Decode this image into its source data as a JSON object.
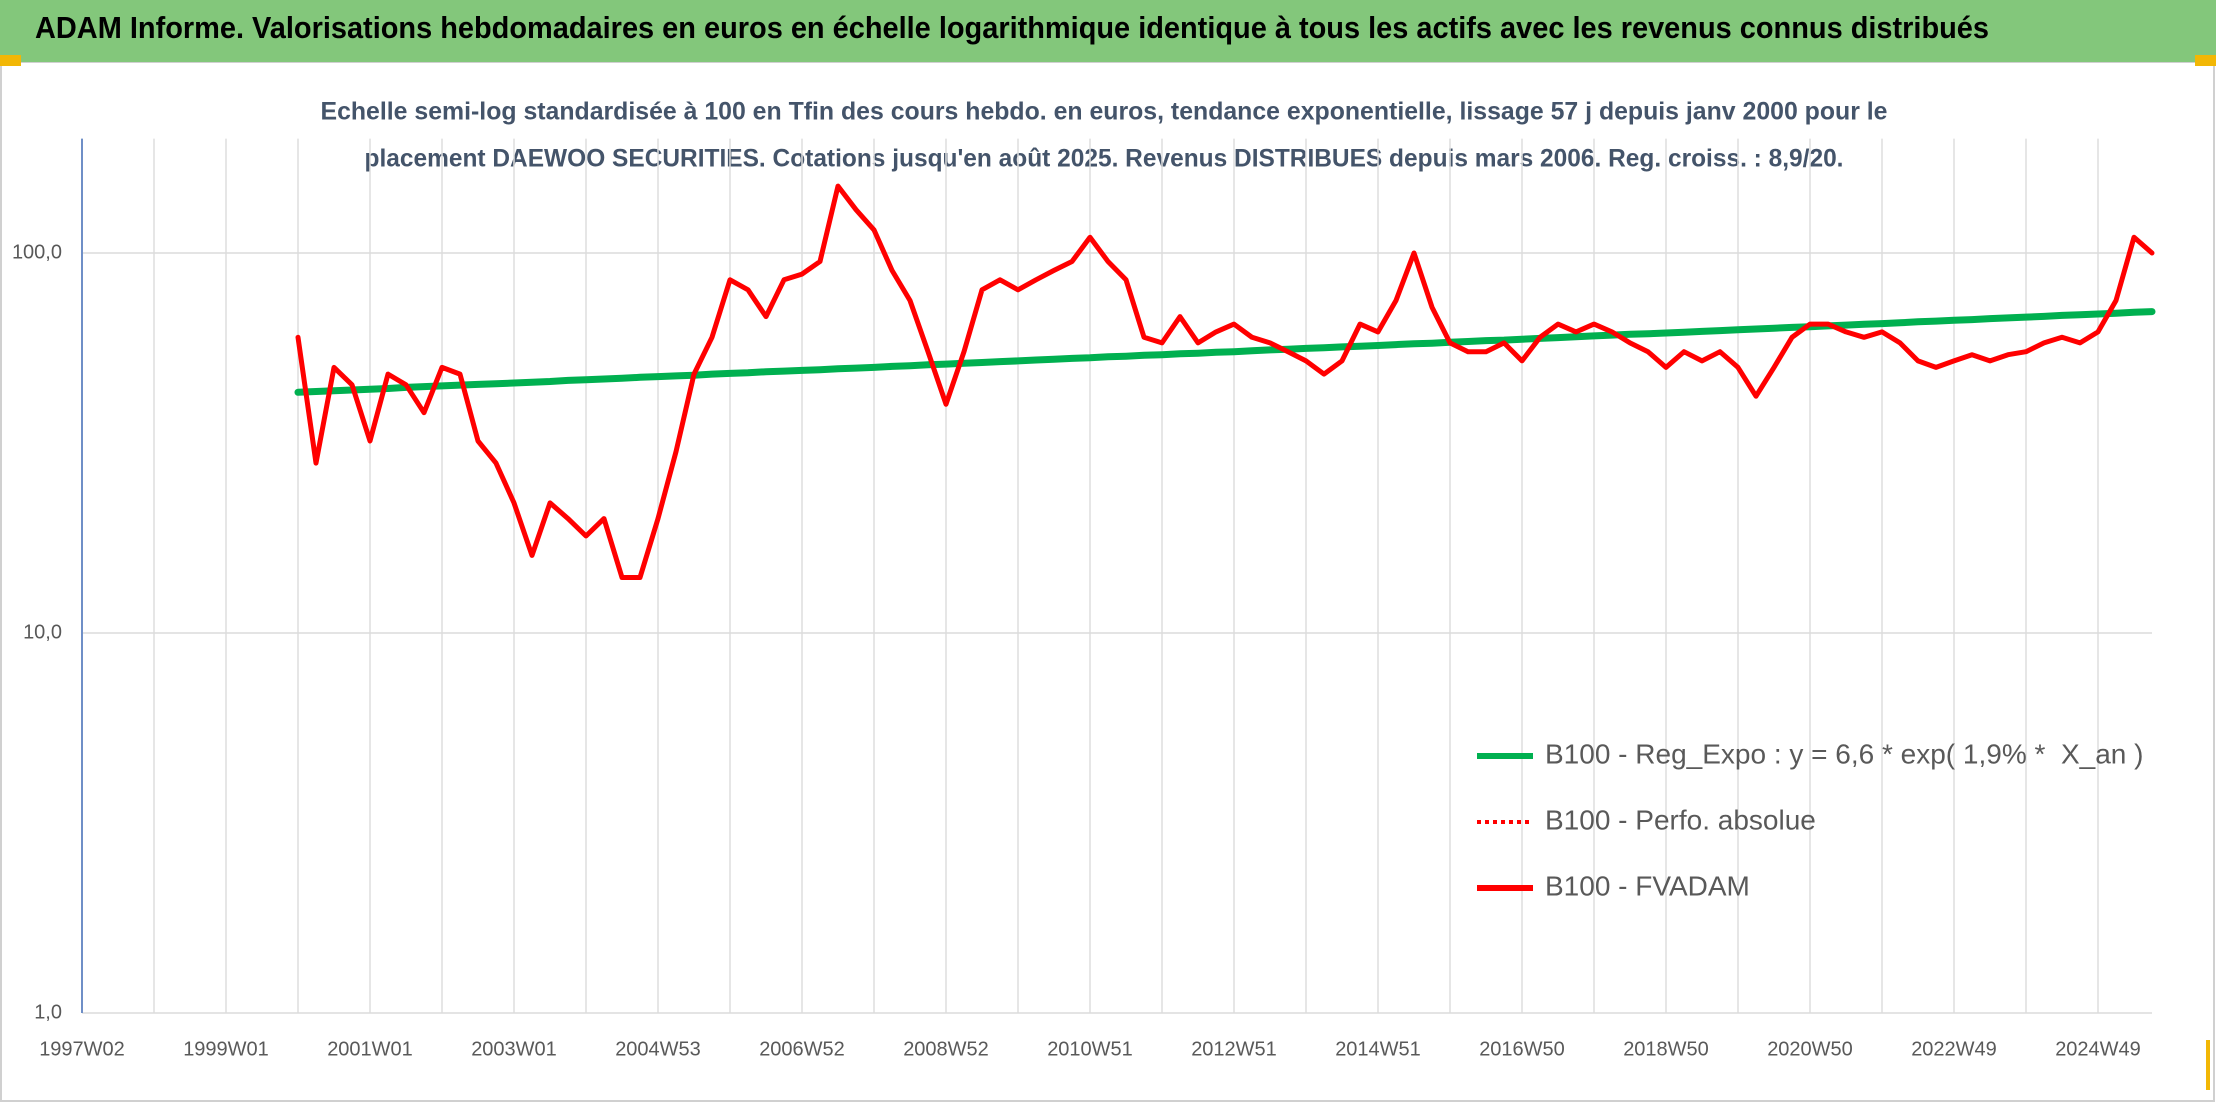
{
  "header": {
    "title": "ADAM Informe. Valorisations hebdomadaires en euros en échelle logarithmique identique à tous les actifs avec les revenus connus distribués"
  },
  "chart_data": {
    "type": "line",
    "title": [
      "Echelle semi-log standardisée à 100 en Tfin des cours hebdo. en euros, tendance exponentielle, lissage 57 j depuis janv 2000 pour le",
      "placement DAEWOO SECURITIES. Cotations jusqu'en août 2025. Revenus DISTRIBUES depuis mars 2006. Reg. croiss. : 8,9/20."
    ],
    "categories": [
      "1997W02",
      null,
      null,
      null,
      null,
      null,
      null,
      null,
      "1999W01",
      null,
      null,
      null,
      null,
      null,
      null,
      null,
      "2001W01",
      null,
      null,
      null,
      null,
      null,
      null,
      null,
      "2003W01",
      null,
      null,
      null,
      null,
      null,
      null,
      null,
      "2004W53",
      null,
      null,
      null,
      null,
      null,
      null,
      null,
      "2006W52",
      null,
      null,
      null,
      null,
      null,
      null,
      null,
      "2008W52",
      null,
      null,
      null,
      null,
      null,
      null,
      null,
      "2010W51",
      null,
      null,
      null,
      null,
      null,
      null,
      null,
      "2012W51",
      null,
      null,
      null,
      null,
      null,
      null,
      null,
      "2014W51",
      null,
      null,
      null,
      null,
      null,
      null,
      null,
      "2016W50",
      null,
      null,
      null,
      null,
      null,
      null,
      null,
      "2018W50",
      null,
      null,
      null,
      null,
      null,
      null,
      null,
      "2020W50",
      null,
      null,
      null,
      null,
      null,
      null,
      null,
      "2022W49",
      null,
      null,
      null,
      null,
      null,
      null,
      null,
      "2024W49",
      null,
      null,
      null
    ],
    "series": [
      {
        "name": "B100 - Reg_Expo : y = 6,6 * exp( 1,9% *  X_an )",
        "color": "#00b050",
        "style": "solid",
        "values": [
          null,
          null,
          null,
          null,
          null,
          null,
          null,
          null,
          null,
          null,
          null,
          null,
          43.0,
          43.2,
          43.4,
          43.6,
          43.8,
          44.0,
          44.3,
          44.5,
          44.7,
          44.9,
          45.1,
          45.3,
          45.5,
          45.7,
          45.9,
          46.2,
          46.4,
          46.6,
          46.8,
          47.1,
          47.3,
          47.5,
          47.7,
          48.0,
          48.2,
          48.4,
          48.7,
          48.9,
          49.1,
          49.3,
          49.6,
          49.8,
          50.0,
          50.3,
          50.5,
          50.8,
          51.0,
          51.3,
          51.5,
          51.8,
          52.0,
          52.3,
          52.5,
          52.8,
          53.0,
          53.3,
          53.5,
          53.8,
          54.0,
          54.3,
          54.5,
          54.8,
          55.0,
          55.3,
          55.6,
          55.8,
          56.1,
          56.3,
          56.6,
          56.8,
          57.1,
          57.4,
          57.7,
          57.9,
          58.2,
          58.5,
          58.8,
          59.0,
          59.3,
          59.6,
          59.9,
          60.2,
          60.5,
          60.8,
          61.1,
          61.3,
          61.6,
          61.9,
          62.2,
          62.5,
          62.8,
          63.1,
          63.4,
          63.7,
          64.0,
          64.3,
          64.6,
          64.9,
          65.2,
          65.5,
          65.9,
          66.2,
          66.5,
          66.8,
          67.2,
          67.5,
          67.8,
          68.1,
          68.5,
          68.8,
          69.1,
          69.4,
          69.8,
          70.1
        ]
      },
      {
        "name": "B100 - Perfo. absolue",
        "color": "#ff0000",
        "style": "dotted",
        "values": [
          null,
          null,
          null,
          null,
          null,
          null,
          null,
          null,
          null,
          null,
          null,
          null,
          null,
          null,
          null,
          null,
          null,
          null,
          null,
          null,
          null,
          null,
          null,
          null,
          null,
          null,
          null,
          null,
          null,
          null,
          null,
          null,
          null,
          null,
          null,
          null,
          null,
          null,
          null,
          null,
          null,
          null,
          null,
          null,
          null,
          null,
          null,
          null,
          null,
          null,
          null,
          null,
          null,
          null,
          null,
          null,
          null,
          null,
          null,
          null,
          null,
          null,
          null,
          null,
          null,
          null,
          null,
          null,
          null,
          null,
          null,
          null,
          null,
          null,
          null,
          null,
          null,
          null,
          null,
          null,
          null,
          null,
          null,
          null,
          null,
          null,
          null,
          null,
          null,
          null,
          null,
          null,
          null,
          null,
          null,
          null,
          null,
          null,
          null,
          null,
          null,
          null,
          null,
          null,
          null,
          null,
          null,
          null,
          null,
          null,
          null,
          null,
          null,
          null,
          null,
          null
        ]
      },
      {
        "name": "B100 - FVADAM",
        "color": "#ff0000",
        "style": "solid",
        "values": [
          null,
          null,
          null,
          null,
          null,
          null,
          null,
          null,
          null,
          null,
          null,
          null,
          60,
          28,
          50,
          45,
          32,
          48,
          45,
          38,
          50,
          48,
          32,
          28,
          22,
          16,
          22,
          20,
          18,
          20,
          14,
          14,
          20,
          30,
          48,
          60,
          85,
          80,
          68,
          85,
          88,
          95,
          150,
          130,
          115,
          90,
          75,
          55,
          40,
          55,
          80,
          85,
          80,
          85,
          90,
          95,
          110,
          95,
          85,
          60,
          58,
          68,
          58,
          62,
          65,
          60,
          58,
          55,
          52,
          48,
          52,
          65,
          62,
          75,
          100,
          72,
          58,
          55,
          55,
          58,
          52,
          60,
          65,
          62,
          65,
          62,
          58,
          55,
          50,
          55,
          52,
          55,
          50,
          42,
          50,
          60,
          65,
          65,
          62,
          60,
          62,
          58,
          52,
          50,
          52,
          54,
          52,
          54,
          55,
          58,
          60,
          58,
          62,
          75,
          110,
          100
        ]
      }
    ],
    "ylim": [
      1,
      200
    ],
    "yticks": [
      {
        "value": 1,
        "label": "1,0"
      },
      {
        "value": 10,
        "label": "10,0"
      },
      {
        "value": 100,
        "label": "100,0"
      }
    ],
    "log_scale": true,
    "grid": true,
    "legend": "lower right"
  }
}
